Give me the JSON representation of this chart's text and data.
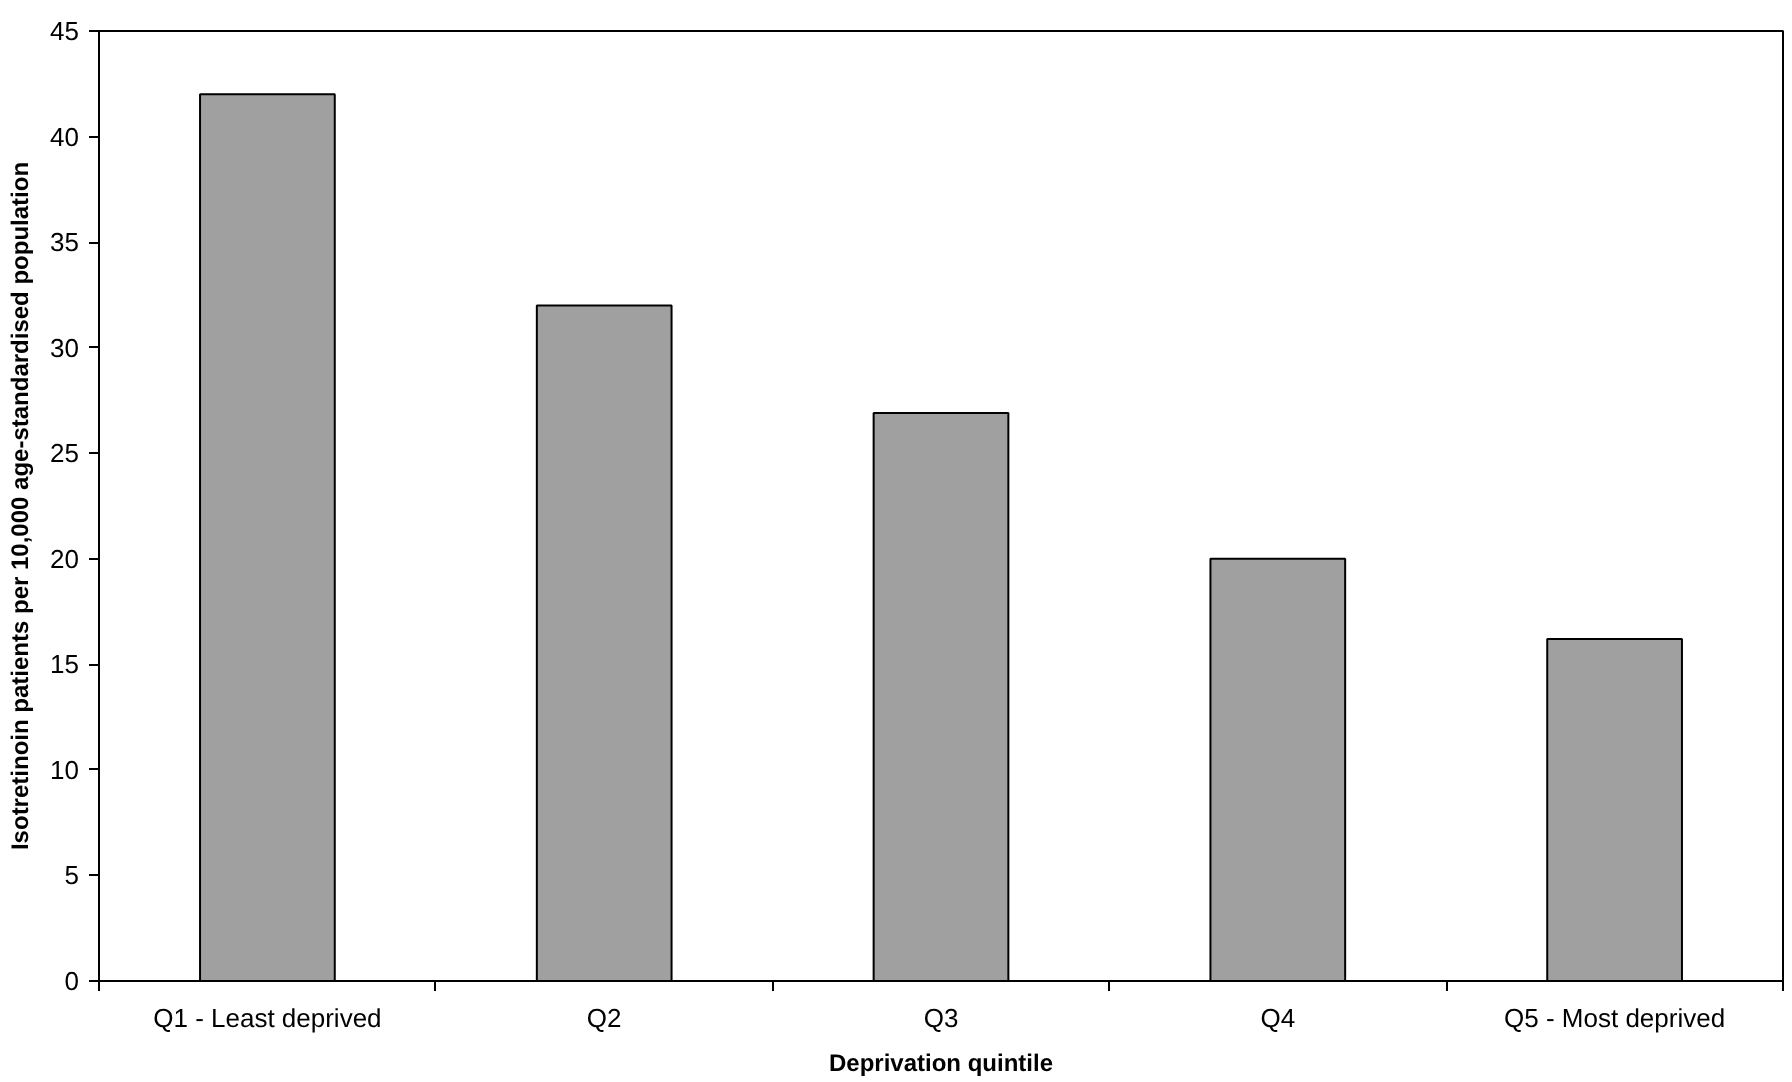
{
  "chart_data": {
    "type": "bar",
    "xlabel": "Deprivation quintile",
    "ylabel": "Isotretinoin patients per 10,000 age-standardised population",
    "categories": [
      "Q1 - Least deprived",
      "Q2",
      "Q3",
      "Q4",
      "Q5 - Most deprived"
    ],
    "values": [
      42.0,
      32.0,
      26.9,
      20.0,
      16.2
    ],
    "color": "#a0a0a0",
    "ylim": [
      0,
      45
    ],
    "yticks": [
      0,
      5,
      10,
      15,
      20,
      25,
      30,
      35,
      40,
      45
    ],
    "grid": false
  }
}
